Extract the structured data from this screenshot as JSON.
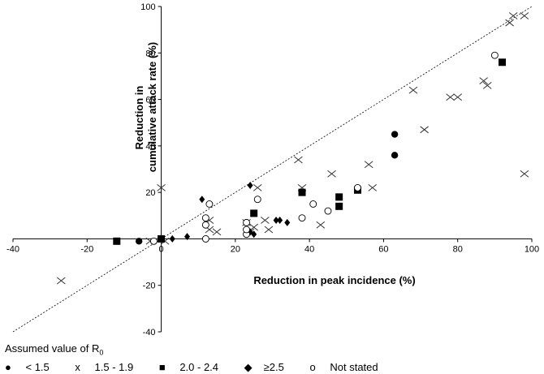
{
  "chart_data": {
    "type": "scatter",
    "title": "",
    "xlabel": "Reduction in peak incidence (%)",
    "ylabel_lines": [
      "Reduction in",
      "cumulative attack rate (%)"
    ],
    "xlim": [
      -40,
      100
    ],
    "ylim": [
      -40,
      100
    ],
    "xticks": [
      -40,
      -20,
      0,
      20,
      40,
      60,
      80,
      100
    ],
    "yticks": [
      -40,
      -20,
      0,
      20,
      40,
      60,
      80,
      100
    ],
    "reference_line": "y = x (dotted)",
    "legend": {
      "title": "Assumed value of R",
      "title_sub": "0",
      "items": [
        {
          "symbol": "●",
          "label": "< 1.5"
        },
        {
          "symbol": "x",
          "label": "1.5 - 1.9"
        },
        {
          "symbol": "■",
          "label": "2.0 - 2.4"
        },
        {
          "symbol": "◆",
          "label": "≥2.5"
        },
        {
          "symbol": "o",
          "label": "Not stated"
        }
      ]
    },
    "series": [
      {
        "name": "< 1.5",
        "marker": "circle-filled",
        "points": [
          [
            -6,
            -1
          ],
          [
            0,
            0
          ],
          [
            63,
            45
          ],
          [
            63,
            36
          ]
        ]
      },
      {
        "name": "1.5 - 1.9",
        "marker": "x",
        "points": [
          [
            -27,
            -18
          ],
          [
            -3,
            -1
          ],
          [
            0,
            22
          ],
          [
            1,
            -1
          ],
          [
            13,
            8
          ],
          [
            13,
            4
          ],
          [
            15,
            3
          ],
          [
            23,
            7
          ],
          [
            24,
            3
          ],
          [
            25,
            5
          ],
          [
            26,
            22
          ],
          [
            28,
            8
          ],
          [
            29,
            4
          ],
          [
            37,
            34
          ],
          [
            38,
            22
          ],
          [
            43,
            6
          ],
          [
            46,
            28
          ],
          [
            56,
            32
          ],
          [
            57,
            22
          ],
          [
            68,
            64
          ],
          [
            71,
            47
          ],
          [
            78,
            61
          ],
          [
            80,
            61
          ],
          [
            87,
            68
          ],
          [
            88,
            66
          ],
          [
            94,
            93
          ],
          [
            95,
            96
          ],
          [
            98,
            96
          ],
          [
            98,
            28
          ]
        ]
      },
      {
        "name": "2.0 - 2.4",
        "marker": "square-filled",
        "points": [
          [
            -12,
            -1
          ],
          [
            0,
            0
          ],
          [
            25,
            11
          ],
          [
            38,
            20
          ],
          [
            48,
            18
          ],
          [
            48,
            14
          ],
          [
            53,
            21
          ],
          [
            92,
            76
          ]
        ]
      },
      {
        "name": "≥2.5",
        "marker": "diamond-filled",
        "points": [
          [
            3,
            0
          ],
          [
            7,
            1
          ],
          [
            11,
            17
          ],
          [
            24,
            23
          ],
          [
            24,
            3
          ],
          [
            25,
            2
          ],
          [
            31,
            8
          ],
          [
            32,
            8
          ],
          [
            34,
            7
          ]
        ]
      },
      {
        "name": "Not stated",
        "marker": "circle-open",
        "points": [
          [
            -2,
            -1
          ],
          [
            12,
            0
          ],
          [
            12,
            6
          ],
          [
            12,
            9
          ],
          [
            13,
            15
          ],
          [
            23,
            2
          ],
          [
            23,
            4
          ],
          [
            23,
            7
          ],
          [
            26,
            17
          ],
          [
            38,
            9
          ],
          [
            41,
            15
          ],
          [
            45,
            12
          ],
          [
            53,
            22
          ],
          [
            90,
            79
          ]
        ]
      }
    ]
  }
}
